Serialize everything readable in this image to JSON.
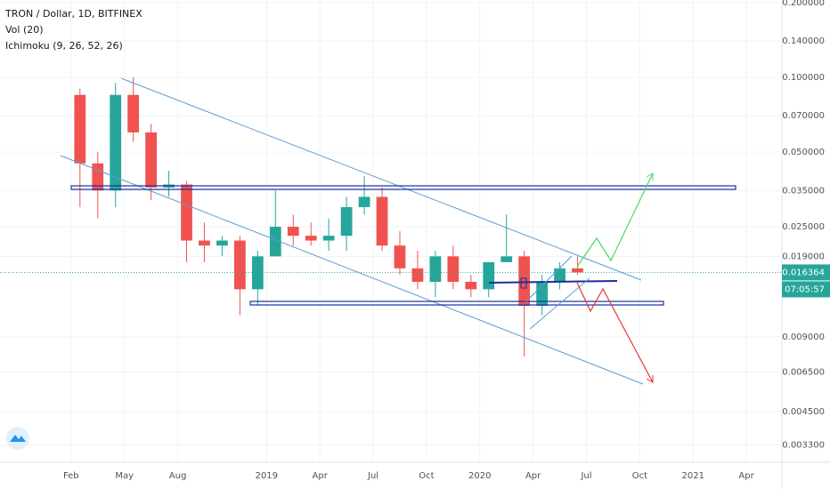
{
  "chart_data": {
    "type": "candlestick",
    "title": "TRON / Dollar, 1D, BITFINEX",
    "indicators": [
      "Vol (20)",
      "Ichimoku (9, 26, 52, 26)"
    ],
    "x": [
      "2018-02",
      "2018-03",
      "2018-04",
      "2018-05",
      "2018-06",
      "2018-07",
      "2018-08",
      "2018-09",
      "2018-10",
      "2018-11",
      "2018-12",
      "2019-01",
      "2019-02",
      "2019-03",
      "2019-04",
      "2019-05",
      "2019-06",
      "2019-07",
      "2019-08",
      "2019-09",
      "2019-10",
      "2019-11",
      "2019-12",
      "2020-01",
      "2020-02",
      "2020-03",
      "2020-04",
      "2020-05",
      "2020-06"
    ],
    "open": [
      0.085,
      0.045,
      0.035,
      0.085,
      0.06,
      0.036,
      0.037,
      0.022,
      0.021,
      0.022,
      0.014,
      0.019,
      0.025,
      0.023,
      0.022,
      0.023,
      0.03,
      0.033,
      0.021,
      0.017,
      0.015,
      0.019,
      0.015,
      0.014,
      0.018,
      0.019,
      0.012,
      0.015,
      0.017
    ],
    "high": [
      0.09,
      0.05,
      0.095,
      0.1,
      0.065,
      0.042,
      0.038,
      0.026,
      0.023,
      0.023,
      0.02,
      0.035,
      0.028,
      0.026,
      0.027,
      0.033,
      0.04,
      0.036,
      0.024,
      0.02,
      0.02,
      0.021,
      0.016,
      0.018,
      0.028,
      0.02,
      0.016,
      0.018,
      0.019
    ],
    "low": [
      0.03,
      0.027,
      0.03,
      0.055,
      0.032,
      0.033,
      0.018,
      0.018,
      0.019,
      0.011,
      0.012,
      0.019,
      0.021,
      0.021,
      0.02,
      0.02,
      0.028,
      0.02,
      0.016,
      0.014,
      0.013,
      0.014,
      0.013,
      0.013,
      0.018,
      0.0075,
      0.011,
      0.014,
      0.016
    ],
    "close": [
      0.045,
      0.035,
      0.085,
      0.06,
      0.036,
      0.037,
      0.022,
      0.021,
      0.022,
      0.014,
      0.019,
      0.025,
      0.023,
      0.022,
      0.023,
      0.03,
      0.033,
      0.021,
      0.017,
      0.015,
      0.019,
      0.015,
      0.014,
      0.018,
      0.019,
      0.012,
      0.015,
      0.017,
      0.016364
    ],
    "up_color": "#26a69a",
    "down_color": "#ef5350",
    "log_scale": true,
    "ylim": [
      0.00281,
      0.205
    ],
    "yticks": [
      {
        "value": 0.2,
        "label": "0.200000"
      },
      {
        "value": 0.14,
        "label": "0.140000"
      },
      {
        "value": 0.1,
        "label": "0.100000"
      },
      {
        "value": 0.07,
        "label": "0.070000"
      },
      {
        "value": 0.05,
        "label": "0.050000"
      },
      {
        "value": 0.035,
        "label": "0.035000"
      },
      {
        "value": 0.025,
        "label": "0.025000"
      },
      {
        "value": 0.019,
        "label": "0.019000"
      },
      {
        "value": 0.009,
        "label": "0.009000"
      },
      {
        "value": 0.0065,
        "label": "0.006500"
      },
      {
        "value": 0.0045,
        "label": "0.004500"
      },
      {
        "value": 0.0033,
        "label": "0.003300"
      }
    ],
    "xlim": [
      "2017-10",
      "2021-06"
    ],
    "xticks": [
      {
        "value": "2018-02",
        "label": "Feb"
      },
      {
        "value": "2018-05",
        "label": "May"
      },
      {
        "value": "2018-08",
        "label": "Aug"
      },
      {
        "value": "2019-01",
        "label": "2019"
      },
      {
        "value": "2019-04",
        "label": "Apr"
      },
      {
        "value": "2019-07",
        "label": "Jul"
      },
      {
        "value": "2019-10",
        "label": "Oct"
      },
      {
        "value": "2020-01",
        "label": "2020"
      },
      {
        "value": "2020-04",
        "label": "Apr"
      },
      {
        "value": "2020-07",
        "label": "Jul"
      },
      {
        "value": "2020-10",
        "label": "Oct"
      },
      {
        "value": "2021-01",
        "label": "2021"
      },
      {
        "value": "2021-04",
        "label": "Apr"
      }
    ],
    "grid": true,
    "last_price": {
      "value": 0.016364,
      "label": "0.016364"
    },
    "countdown": "07:05:57"
  }
}
